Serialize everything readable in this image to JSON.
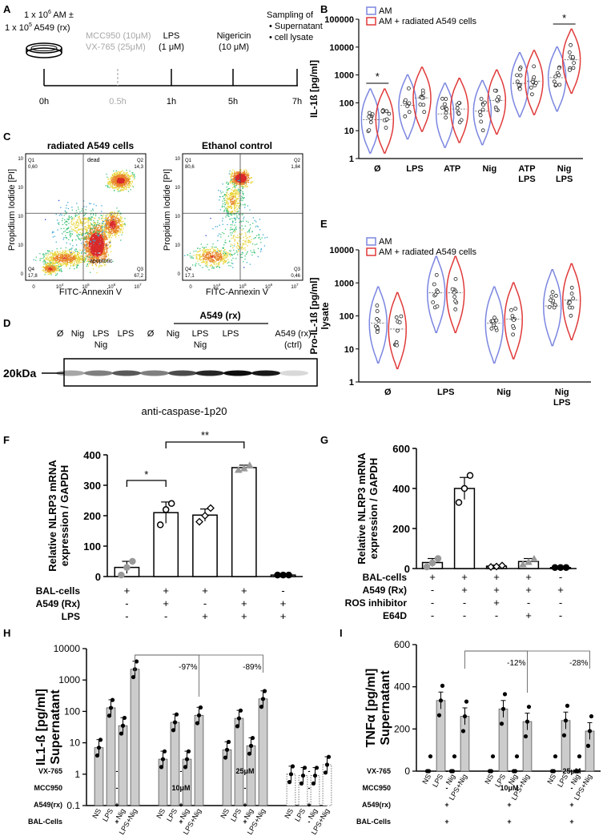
{
  "panel_labels": {
    "A": "A",
    "B": "B",
    "C": "C",
    "D": "D",
    "E": "E",
    "F": "F",
    "G": "G",
    "H": "H",
    "I": "I"
  },
  "colors": {
    "am": "#7b86e0",
    "am_rx": "#e03a3a",
    "grey_bar": "#cccccc",
    "dot_grey": "#999999",
    "muted": "#a8a8a8"
  },
  "panel_a": {
    "dose_line1": "1 x 10",
    "dose_line1_sup": "6",
    "dose_line1_end": " AM ±",
    "dose_line2": "1 x 10",
    "dose_line2_sup": "5",
    "dose_line2_end": " A549 (rx)",
    "inhibitor1": "MCC950 (10μM)",
    "inhibitor2": "VX-765 (25μM)",
    "lps": "LPS",
    "lps_conc": "(1 μM)",
    "nig": "Nigericin",
    "nig_conc": "(10 μM)",
    "sampling_title": "Sampling of",
    "sampling_items": [
      "Supernatant",
      "cell lysate"
    ],
    "times": [
      "0h",
      "0.5h",
      "1h",
      "5h",
      "7h"
    ]
  },
  "chart_data": [
    {
      "panel": "B",
      "type": "violin",
      "ylabel": "IL-1ß [pg/ml]",
      "yscale": "log",
      "ylim": [
        1,
        100000
      ],
      "yticks": [
        "1",
        "10",
        "100",
        "1000",
        "10000",
        "100000"
      ],
      "categories": [
        "Ø",
        "LPS",
        "ATP",
        "Nig",
        "ATP\nLPS",
        "Nig\nLPS"
      ],
      "legend": [
        "AM",
        "AM + radiated  A549 cells"
      ],
      "series": [
        {
          "name": "AM",
          "medians": [
            25,
            80,
            40,
            50,
            500,
            800
          ]
        },
        {
          "name": "AM + radiated  A549 cells",
          "medians": [
            25,
            150,
            60,
            120,
            600,
            3500
          ]
        }
      ],
      "annotations": [
        {
          "text": "*",
          "category": "Ø"
        },
        {
          "text": "*",
          "category": "Nig\nLPS"
        }
      ]
    },
    {
      "panel": "C",
      "type": "scatter",
      "titles": [
        "radiated A549 cells",
        "Ethanol control"
      ],
      "xlabel": "FITC-Annexin V",
      "ylabel": "Propidium Iodide [PI]",
      "plot1": {
        "quadrants": {
          "Q1": "0,60",
          "Q2": "14,3",
          "Q3": "67,2",
          "Q4": "17,8"
        },
        "labels": [
          "dead",
          "apoptotic"
        ]
      },
      "plot2": {
        "quadrants": {
          "Q1": "80,6",
          "Q2": "1,84",
          "Q3": "0,46",
          "Q4": "17,1"
        }
      },
      "xticks": [
        "0",
        "10",
        "10",
        "10",
        "10"
      ],
      "xsup": [
        "",
        "4",
        "5",
        "6",
        "7"
      ]
    },
    {
      "panel": "D",
      "type": "blot",
      "group_label": "A549 (rx)",
      "lanes": [
        "Ø",
        "Nig",
        "LPS\nNig",
        "LPS",
        "Ø",
        "Nig",
        "LPS\nNig",
        "LPS",
        "A549 (rx)\n(ctrl)"
      ],
      "marker": "20kDa",
      "caption": "anti-caspase-1p20"
    },
    {
      "panel": "E",
      "type": "violin",
      "ylabel": "Pro-IL-1ß [pg/ml]",
      "ylabel2": "lysate",
      "yscale": "log",
      "ylim": [
        1,
        10000
      ],
      "yticks": [
        "1",
        "10",
        "100",
        "1000",
        "10000"
      ],
      "categories": [
        "Ø",
        "LPS",
        "Nig",
        "Nig\nLPS"
      ],
      "legend": [
        "AM",
        "AM + radiated  A549 cells"
      ],
      "series": [
        {
          "name": "AM",
          "medians": [
            60,
            500,
            60,
            200
          ]
        },
        {
          "name": "AM + radiated  A549 cells",
          "medians": [
            40,
            500,
            80,
            300
          ]
        }
      ]
    },
    {
      "panel": "F",
      "type": "bar",
      "ylabel": "Relative NLRP3 mRNA",
      "ylabel2": "expression / GAPDH",
      "ylim": [
        0,
        400
      ],
      "yticks": [
        "0",
        "100",
        "200",
        "300",
        "400"
      ],
      "values": [
        30,
        210,
        202,
        358,
        5
      ],
      "errors": [
        20,
        35,
        20,
        8,
        2
      ],
      "points": [
        [
          5,
          30,
          50
        ],
        [
          170,
          220,
          240
        ],
        [
          180,
          200,
          225
        ],
        [
          350,
          355,
          365
        ],
        [
          5,
          5,
          5
        ]
      ],
      "rows": [
        {
          "label": "BAL-cells",
          "cells": [
            "+",
            "+",
            "+",
            "+",
            "-"
          ]
        },
        {
          "label": "A549 (Rx)",
          "cells": [
            "-",
            "+",
            "-",
            "+",
            "+"
          ]
        },
        {
          "label": "LPS",
          "cells": [
            "-",
            "-",
            "+",
            "+",
            "+"
          ]
        }
      ],
      "annotations": [
        {
          "text": "*",
          "between": [
            0,
            1
          ]
        },
        {
          "text": "**",
          "between": [
            1,
            3
          ]
        }
      ]
    },
    {
      "panel": "G",
      "type": "bar",
      "ylabel": "Relative NLRP3 mRNA",
      "ylabel2": "expression / GAPDH",
      "ylim": [
        0,
        600
      ],
      "yticks": [
        "0",
        "200",
        "400",
        "600"
      ],
      "values": [
        30,
        400,
        12,
        35,
        5
      ],
      "errors": [
        20,
        55,
        5,
        15,
        2
      ],
      "points": [
        [
          8,
          28,
          50
        ],
        [
          330,
          400,
          465
        ],
        [
          8,
          10,
          15
        ],
        [
          20,
          32,
          48
        ],
        [
          5,
          5,
          5
        ]
      ],
      "rows": [
        {
          "label": "BAL-cells",
          "cells": [
            "+",
            "+",
            "+",
            "+",
            "-"
          ]
        },
        {
          "label": "A549 (Rx)",
          "cells": [
            "-",
            "+",
            "+",
            "+",
            "+"
          ]
        },
        {
          "label": "ROS inhibitor",
          "cells": [
            "-",
            "-",
            "+",
            "-",
            "-"
          ]
        },
        {
          "label": "E64D",
          "cells": [
            "-",
            "-",
            "-",
            "+",
            "-"
          ]
        }
      ]
    },
    {
      "panel": "H",
      "type": "bar",
      "ylabel": "IL1-ß [pg/ml]",
      "ylabel2": "Supernatant",
      "yscale": "log",
      "ylim": [
        0.1,
        10000
      ],
      "yticks": [
        "0.1",
        "1",
        "10",
        "100",
        "1000",
        "10000"
      ],
      "categories": [
        "NS",
        "LPS",
        "Nig",
        "LPS+Nig"
      ],
      "groups": [
        {
          "values": [
            7,
            130,
            35,
            2200
          ]
        },
        {
          "values": [
            3,
            45,
            3,
            75
          ]
        },
        {
          "values": [
            6,
            60,
            8,
            250
          ]
        },
        {
          "values": [
            1,
            0.9,
            0.9,
            2
          ]
        }
      ],
      "annotations": [
        {
          "text": "-97%"
        },
        {
          "text": "-89%"
        }
      ],
      "rows": [
        {
          "label": "VX-765",
          "cells": [
            "-",
            "-",
            "25μM",
            "-"
          ]
        },
        {
          "label": "MCC950",
          "cells": [
            "-",
            "10μM",
            "-",
            "-"
          ]
        },
        {
          "label": "A549(rx)",
          "cells": [
            "+",
            "+",
            "+",
            "+"
          ]
        },
        {
          "label": "BAL-Cells",
          "cells": [
            "+",
            "+",
            "+",
            "-"
          ]
        }
      ]
    },
    {
      "panel": "I",
      "type": "bar",
      "ylabel": "TNFα [pg/ml]",
      "ylabel2": "Supernatant",
      "ylim": [
        0,
        600
      ],
      "yticks": [
        "0",
        "200",
        "400",
        "600"
      ],
      "categories": [
        "NS",
        "LPS",
        "Nig",
        "LPS+Nig"
      ],
      "groups": [
        {
          "values": [
            0,
            335,
            0,
            260
          ]
        },
        {
          "values": [
            0,
            295,
            0,
            235
          ]
        },
        {
          "values": [
            0,
            240,
            0,
            190
          ]
        }
      ],
      "annotations": [
        {
          "text": "-12%"
        },
        {
          "text": "-28%"
        }
      ],
      "rows": [
        {
          "label": "VX-765",
          "cells": [
            "-",
            "-",
            "25μM"
          ]
        },
        {
          "label": "MCC950",
          "cells": [
            "-",
            "10μM",
            "-"
          ]
        },
        {
          "label": "A549(rx)",
          "cells": [
            "+",
            "+",
            "+"
          ]
        },
        {
          "label": "BAL-Cells",
          "cells": [
            "+",
            "+",
            "+"
          ]
        }
      ]
    }
  ]
}
